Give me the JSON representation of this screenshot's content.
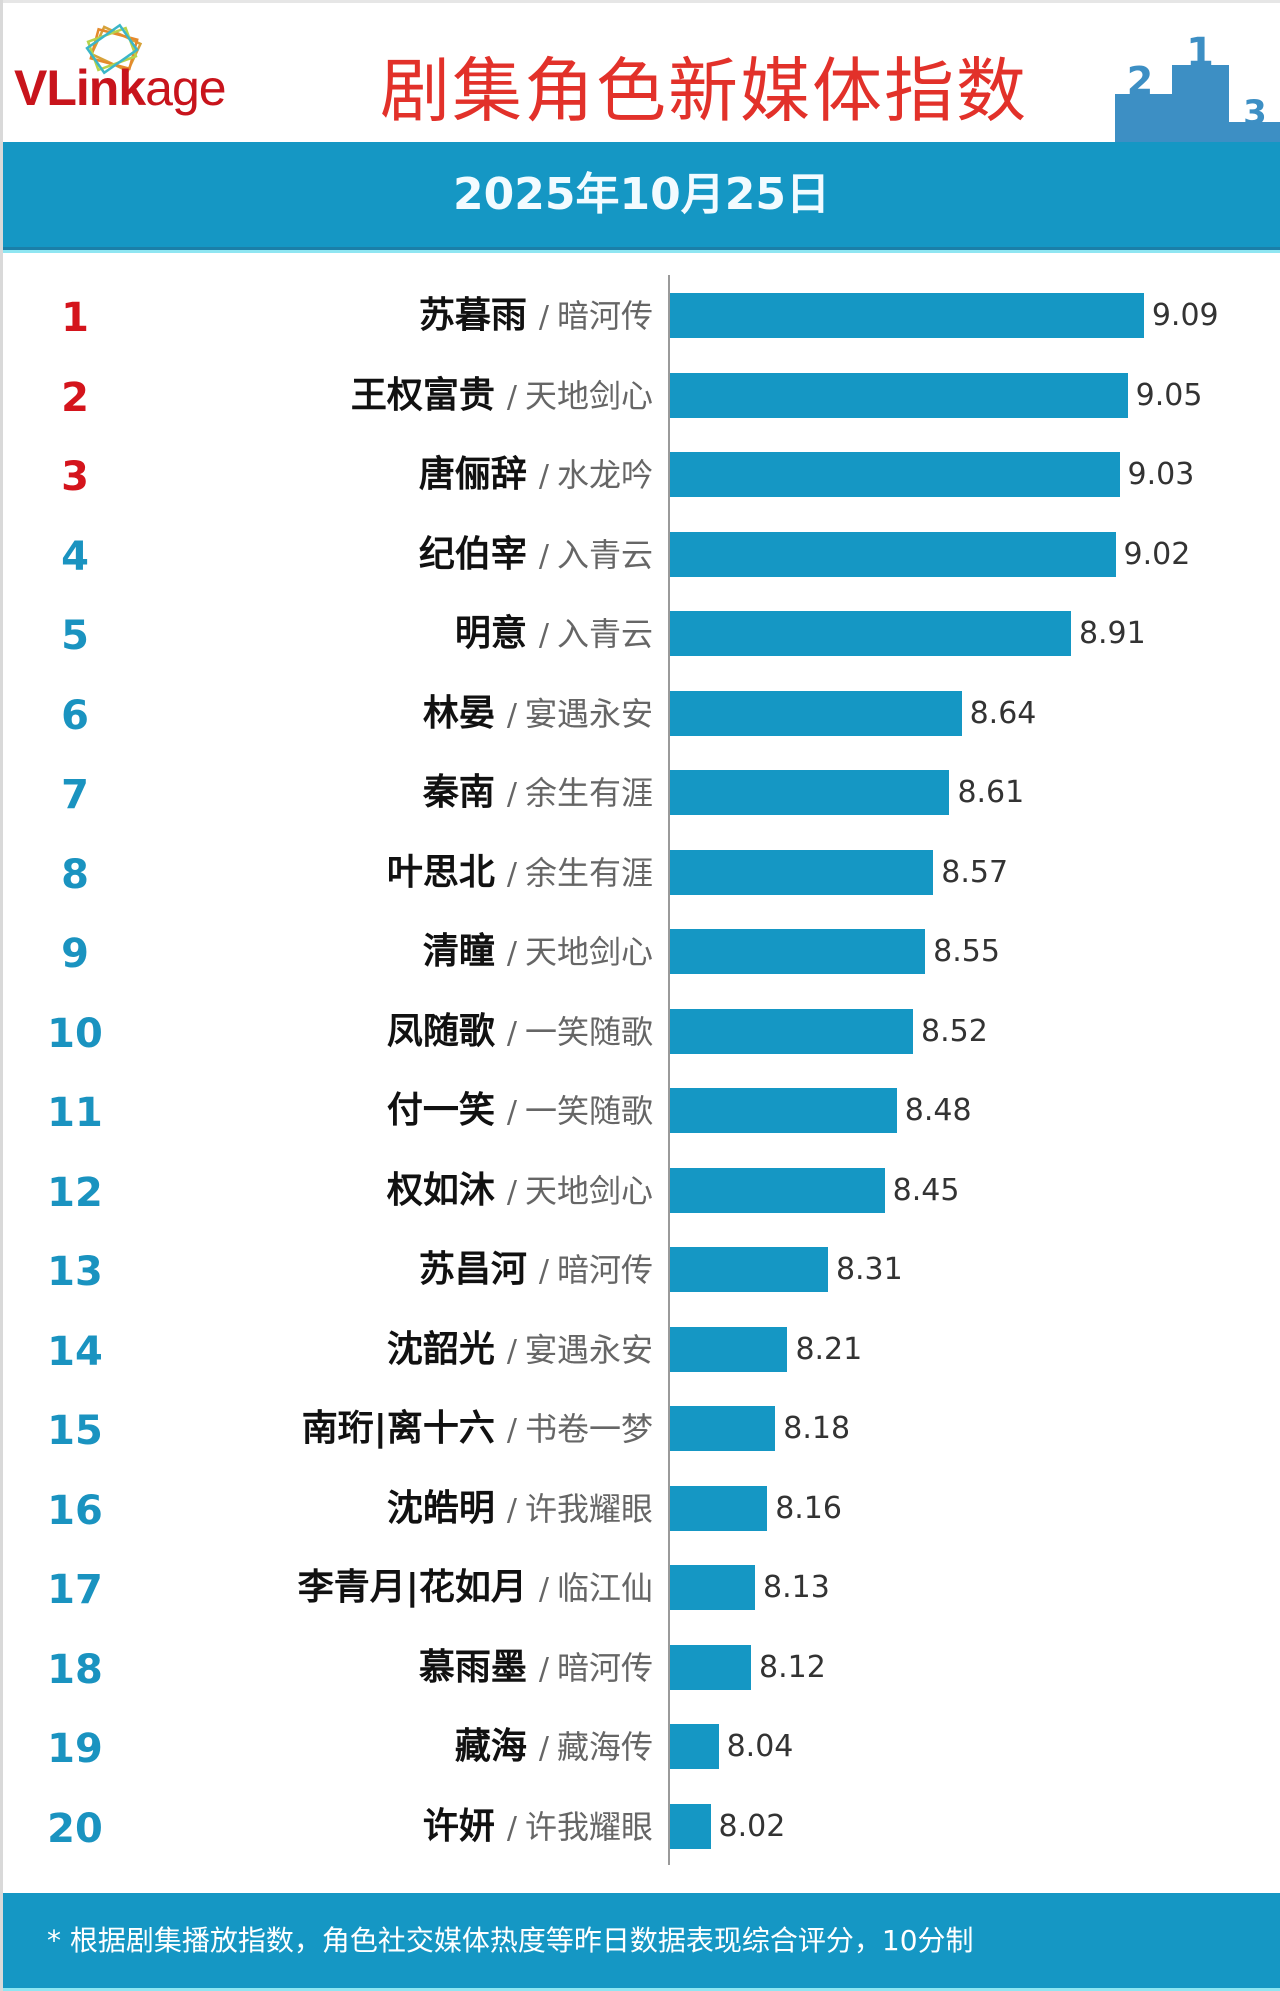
{
  "header": {
    "logo": {
      "bold": "VLink",
      "light": "age"
    },
    "title": "剧集角色新媒体指数",
    "podium": {
      "first": "1",
      "second": "2",
      "third": "3"
    },
    "date": "2025年10月25日"
  },
  "colors": {
    "band": "#1597c4",
    "bar": "#1597c4",
    "title": "#e2312a",
    "rank_top3": "#d4141c",
    "rank_other": "#1a93c0",
    "podium": "#3d8fc4"
  },
  "ranking": [
    {
      "rank": "1",
      "name": "苏暮雨",
      "drama": "暗河传",
      "value": "9.09"
    },
    {
      "rank": "2",
      "name": "王权富贵",
      "drama": "天地剑心",
      "value": "9.05"
    },
    {
      "rank": "3",
      "name": "唐俪辞",
      "drama": "水龙吟",
      "value": "9.03"
    },
    {
      "rank": "4",
      "name": "纪伯宰",
      "drama": "入青云",
      "value": "9.02"
    },
    {
      "rank": "5",
      "name": "明意",
      "drama": "入青云",
      "value": "8.91"
    },
    {
      "rank": "6",
      "name": "林晏",
      "drama": "宴遇永安",
      "value": "8.64"
    },
    {
      "rank": "7",
      "name": "秦南",
      "drama": "余生有涯",
      "value": "8.61"
    },
    {
      "rank": "8",
      "name": "叶思北",
      "drama": "余生有涯",
      "value": "8.57"
    },
    {
      "rank": "9",
      "name": "清瞳",
      "drama": "天地剑心",
      "value": "8.55"
    },
    {
      "rank": "10",
      "name": "凤随歌",
      "drama": "一笑随歌",
      "value": "8.52"
    },
    {
      "rank": "11",
      "name": "付一笑",
      "drama": "一笑随歌",
      "value": "8.48"
    },
    {
      "rank": "12",
      "name": "权如沐",
      "drama": "天地剑心",
      "value": "8.45"
    },
    {
      "rank": "13",
      "name": "苏昌河",
      "drama": "暗河传",
      "value": "8.31"
    },
    {
      "rank": "14",
      "name": "沈韶光",
      "drama": "宴遇永安",
      "value": "8.21"
    },
    {
      "rank": "15",
      "name": "南珩|离十六",
      "drama": "书卷一梦",
      "value": "8.18"
    },
    {
      "rank": "16",
      "name": "沈皓明",
      "drama": "许我耀眼",
      "value": "8.16"
    },
    {
      "rank": "17",
      "name": "李青月|花如月",
      "drama": "临江仙",
      "value": "8.13"
    },
    {
      "rank": "18",
      "name": "慕雨墨",
      "drama": "暗河传",
      "value": "8.12"
    },
    {
      "rank": "19",
      "name": "藏海",
      "drama": "藏海传",
      "value": "8.04"
    },
    {
      "rank": "20",
      "name": "许妍",
      "drama": "许我耀眼",
      "value": "8.02"
    }
  ],
  "separator": "/",
  "footer": {
    "note": "* 根据剧集播放指数，角色社交媒体热度等昨日数据表现综合评分，10分制"
  },
  "chart_data": {
    "type": "bar",
    "orientation": "horizontal",
    "title": "剧集角色新媒体指数",
    "subtitle": "2025年10月25日",
    "categories": [
      "苏暮雨 / 暗河传",
      "王权富贵 / 天地剑心",
      "唐俪辞 / 水龙吟",
      "纪伯宰 / 入青云",
      "明意 / 入青云",
      "林晏 / 宴遇永安",
      "秦南 / 余生有涯",
      "叶思北 / 余生有涯",
      "清瞳 / 天地剑心",
      "凤随歌 / 一笑随歌",
      "付一笑 / 一笑随歌",
      "权如沐 / 天地剑心",
      "苏昌河 / 暗河传",
      "沈韶光 / 宴遇永安",
      "南珩|离十六 / 书卷一梦",
      "沈皓明 / 许我耀眼",
      "李青月|花如月 / 临江仙",
      "慕雨墨 / 暗河传",
      "藏海 / 藏海传",
      "许妍 / 许我耀眼"
    ],
    "values": [
      9.09,
      9.05,
      9.03,
      9.02,
      8.91,
      8.64,
      8.61,
      8.57,
      8.55,
      8.52,
      8.48,
      8.45,
      8.31,
      8.21,
      8.18,
      8.16,
      8.13,
      8.12,
      8.04,
      8.02
    ],
    "xlabel": "",
    "ylabel": "",
    "data_labels": true,
    "grid": false,
    "legend": null,
    "note": "* 根据剧集播放指数，角色社交媒体热度等昨日数据表现综合评分，10分制"
  }
}
